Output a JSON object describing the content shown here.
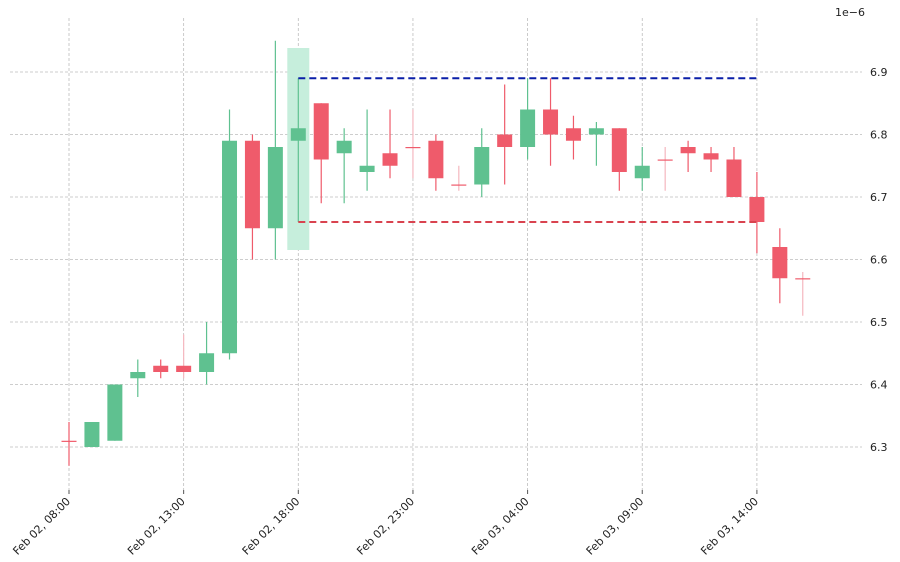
{
  "chart_data": {
    "type": "candlestick",
    "offset_label": "1e−6",
    "y_ticks": [
      "6.3",
      "6.4",
      "6.5",
      "6.6",
      "6.7",
      "6.8",
      "6.9"
    ],
    "x_tick_labels": [
      "Feb 02, 08:00",
      "Feb 02, 13:00",
      "Feb 02, 18:00",
      "Feb 02, 23:00",
      "Feb 03, 04:00",
      "Feb 03, 09:00",
      "Feb 03, 14:00"
    ],
    "x_tick_candle_index": [
      0,
      5,
      10,
      15,
      20,
      25,
      30
    ],
    "ylim": [
      6.235,
      6.985
    ],
    "grid": true,
    "candles": [
      {
        "o": 6.31,
        "h": 6.34,
        "l": 6.27,
        "c": 6.31
      },
      {
        "o": 6.3,
        "h": 6.34,
        "l": 6.3,
        "c": 6.34
      },
      {
        "o": 6.31,
        "h": 6.4,
        "l": 6.31,
        "c": 6.4
      },
      {
        "o": 6.41,
        "h": 6.44,
        "l": 6.38,
        "c": 6.42
      },
      {
        "o": 6.43,
        "h": 6.44,
        "l": 6.41,
        "c": 6.42
      },
      {
        "o": 6.43,
        "h": 6.48,
        "l": 6.41,
        "c": 6.42
      },
      {
        "o": 6.42,
        "h": 6.5,
        "l": 6.4,
        "c": 6.45
      },
      {
        "o": 6.45,
        "h": 6.84,
        "l": 6.44,
        "c": 6.79
      },
      {
        "o": 6.79,
        "h": 6.8,
        "l": 6.6,
        "c": 6.65
      },
      {
        "o": 6.65,
        "h": 6.95,
        "l": 6.6,
        "c": 6.78
      },
      {
        "o": 6.79,
        "h": 6.89,
        "l": 6.66,
        "c": 6.81
      },
      {
        "o": 6.85,
        "h": 6.85,
        "l": 6.69,
        "c": 6.76
      },
      {
        "o": 6.77,
        "h": 6.81,
        "l": 6.69,
        "c": 6.79
      },
      {
        "o": 6.74,
        "h": 6.84,
        "l": 6.71,
        "c": 6.75
      },
      {
        "o": 6.77,
        "h": 6.84,
        "l": 6.73,
        "c": 6.75
      },
      {
        "o": 6.78,
        "h": 6.84,
        "l": 6.73,
        "c": 6.78
      },
      {
        "o": 6.79,
        "h": 6.8,
        "l": 6.71,
        "c": 6.73
      },
      {
        "o": 6.72,
        "h": 6.75,
        "l": 6.71,
        "c": 6.72
      },
      {
        "o": 6.72,
        "h": 6.81,
        "l": 6.7,
        "c": 6.78
      },
      {
        "o": 6.8,
        "h": 6.88,
        "l": 6.72,
        "c": 6.78
      },
      {
        "o": 6.78,
        "h": 6.89,
        "l": 6.76,
        "c": 6.84
      },
      {
        "o": 6.84,
        "h": 6.89,
        "l": 6.75,
        "c": 6.8
      },
      {
        "o": 6.81,
        "h": 6.83,
        "l": 6.76,
        "c": 6.79
      },
      {
        "o": 6.8,
        "h": 6.82,
        "l": 6.75,
        "c": 6.81
      },
      {
        "o": 6.81,
        "h": 6.81,
        "l": 6.71,
        "c": 6.74
      },
      {
        "o": 6.73,
        "h": 6.78,
        "l": 6.71,
        "c": 6.75
      },
      {
        "o": 6.76,
        "h": 6.78,
        "l": 6.71,
        "c": 6.76
      },
      {
        "o": 6.78,
        "h": 6.79,
        "l": 6.74,
        "c": 6.77
      },
      {
        "o": 6.77,
        "h": 6.78,
        "l": 6.74,
        "c": 6.76
      },
      {
        "o": 6.76,
        "h": 6.78,
        "l": 6.7,
        "c": 6.7
      },
      {
        "o": 6.7,
        "h": 6.74,
        "l": 6.61,
        "c": 6.66
      },
      {
        "o": 6.62,
        "h": 6.65,
        "l": 6.53,
        "c": 6.57
      },
      {
        "o": 6.57,
        "h": 6.58,
        "l": 6.51,
        "c": 6.57
      }
    ],
    "highlight_candle_index": 10,
    "hlines": [
      {
        "y": 6.89,
        "from_index": 10,
        "to_index": 30,
        "color": "#0a1fa8"
      },
      {
        "y": 6.66,
        "from_index": 10,
        "to_index": 30,
        "color": "#d9434f"
      }
    ],
    "colors": {
      "up": "#5fc190",
      "down": "#ef5b6b",
      "doji": "#ef5b6b",
      "highlight": "#c6eedc"
    }
  }
}
